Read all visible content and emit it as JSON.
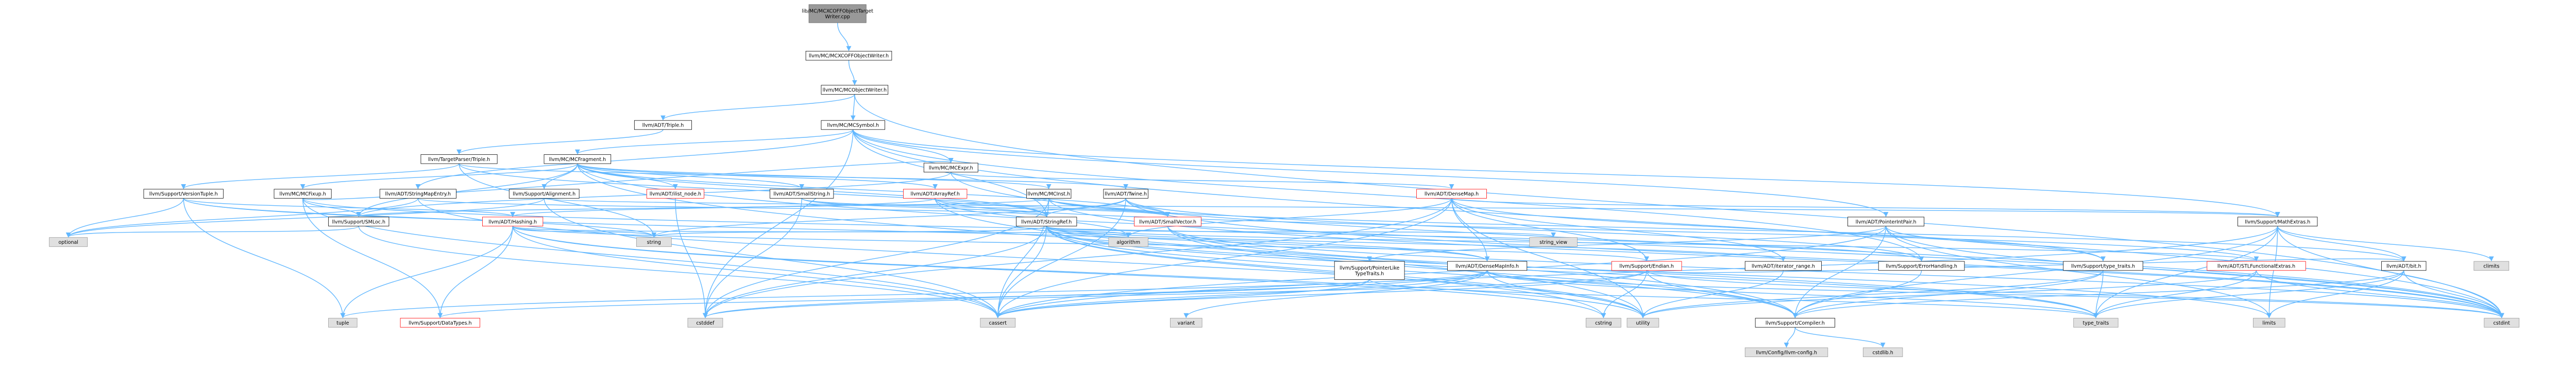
{
  "title": "lib/MC/MCXCOFFObjectTargetWriter.cpp",
  "colors": {
    "root_fill": "#999999",
    "root_border": "#666666",
    "node_fill": "#ffffff",
    "node_border": "#000000",
    "red_node_border": "#ff0000",
    "external_fill": "#e0e0e0",
    "external_border": "#999999",
    "edge": "#63b8ff"
  },
  "nodes": [
    {
      "id": "root",
      "kind": "root",
      "label": [
        "lib/MC/MCXCOFFObjectTarget",
        "Writer.cpp"
      ]
    },
    {
      "id": "mcxcoff",
      "kind": "normal",
      "label": [
        "llvm/MC/MCXCOFFObjectWriter.h"
      ]
    },
    {
      "id": "mcobj",
      "kind": "normal",
      "label": [
        "llvm/MC/MCObjectWriter.h"
      ]
    },
    {
      "id": "triple",
      "kind": "normal",
      "label": [
        "llvm/ADT/Triple.h"
      ]
    },
    {
      "id": "mcsymbol",
      "kind": "normal",
      "label": [
        "llvm/MC/MCSymbol.h"
      ]
    },
    {
      "id": "tptriple",
      "kind": "normal",
      "label": [
        "llvm/TargetParser/Triple.h"
      ]
    },
    {
      "id": "mcfragment",
      "kind": "normal",
      "label": [
        "llvm/MC/MCFragment.h"
      ]
    },
    {
      "id": "mcexpr",
      "kind": "normal",
      "label": [
        "llvm/MC/MCExpr.h"
      ]
    },
    {
      "id": "versiontuple",
      "kind": "normal",
      "label": [
        "llvm/Support/VersionTuple.h"
      ]
    },
    {
      "id": "mcfixup",
      "kind": "normal",
      "label": [
        "llvm/MC/MCFixup.h"
      ]
    },
    {
      "id": "stringmapentry",
      "kind": "normal",
      "label": [
        "llvm/ADT/StringMapEntry.h"
      ]
    },
    {
      "id": "alignment",
      "kind": "normal",
      "label": [
        "llvm/Support/Alignment.h"
      ]
    },
    {
      "id": "ilistnode",
      "kind": "red",
      "label": [
        "llvm/ADT/ilist_node.h"
      ]
    },
    {
      "id": "smallstring",
      "kind": "normal",
      "label": [
        "llvm/ADT/SmallString.h"
      ]
    },
    {
      "id": "arrayref",
      "kind": "red",
      "label": [
        "llvm/ADT/ArrayRef.h"
      ]
    },
    {
      "id": "mcinst",
      "kind": "normal",
      "label": [
        "llvm/MC/MCInst.h"
      ]
    },
    {
      "id": "twine",
      "kind": "normal",
      "label": [
        "llvm/ADT/Twine.h"
      ]
    },
    {
      "id": "densemap",
      "kind": "red",
      "label": [
        "llvm/ADT/DenseMap.h"
      ]
    },
    {
      "id": "smloc",
      "kind": "normal",
      "label": [
        "llvm/Support/SMLoc.h"
      ]
    },
    {
      "id": "hashing",
      "kind": "red",
      "label": [
        "llvm/ADT/Hashing.h"
      ]
    },
    {
      "id": "stringref",
      "kind": "normal",
      "label": [
        "llvm/ADT/StringRef.h"
      ]
    },
    {
      "id": "smallvector",
      "kind": "red",
      "label": [
        "llvm/ADT/SmallVector.h"
      ]
    },
    {
      "id": "pointerintpair",
      "kind": "normal",
      "label": [
        "llvm/ADT/PointerIntPair.h"
      ]
    },
    {
      "id": "mathextras",
      "kind": "normal",
      "label": [
        "llvm/Support/MathExtras.h"
      ]
    },
    {
      "id": "optional",
      "kind": "external",
      "label": [
        "optional"
      ]
    },
    {
      "id": "string",
      "kind": "external",
      "label": [
        "string"
      ]
    },
    {
      "id": "algorithm",
      "kind": "external",
      "label": [
        "algorithm"
      ]
    },
    {
      "id": "string_view",
      "kind": "external",
      "label": [
        "string_view"
      ]
    },
    {
      "id": "ptrliketypetraits",
      "kind": "normal",
      "label": [
        "llvm/Support/PointerLike",
        "TypeTraits.h"
      ]
    },
    {
      "id": "densemapinfo",
      "kind": "normal",
      "label": [
        "llvm/ADT/DenseMapInfo.h"
      ]
    },
    {
      "id": "ecradix",
      "kind": "red",
      "label": [
        "llvm/Support/Endian.h"
      ]
    },
    {
      "id": "iterator_range",
      "kind": "normal",
      "label": [
        "llvm/ADT/iterator_range.h"
      ]
    },
    {
      "id": "errorhandling",
      "kind": "normal",
      "label": [
        "llvm/Support/ErrorHandling.h"
      ]
    },
    {
      "id": "typetraits_h",
      "kind": "normal",
      "label": [
        "llvm/Support/type_traits.h"
      ]
    },
    {
      "id": "stlfunctional",
      "kind": "red",
      "label": [
        "llvm/ADT/STLFunctionalExtras.h"
      ]
    },
    {
      "id": "bit",
      "kind": "normal",
      "label": [
        "llvm/ADT/bit.h"
      ]
    },
    {
      "id": "climits",
      "kind": "external",
      "label": [
        "climits"
      ]
    },
    {
      "id": "tuple",
      "kind": "external",
      "label": [
        "tuple"
      ]
    },
    {
      "id": "datatypes",
      "kind": "red",
      "label": [
        "llvm/Support/DataTypes.h"
      ]
    },
    {
      "id": "cstddef",
      "kind": "external",
      "label": [
        "cstddef"
      ]
    },
    {
      "id": "cassert",
      "kind": "external",
      "label": [
        "cassert"
      ]
    },
    {
      "id": "variant",
      "kind": "external",
      "label": [
        "variant"
      ]
    },
    {
      "id": "cstring",
      "kind": "external",
      "label": [
        "cstring"
      ]
    },
    {
      "id": "utility",
      "kind": "external",
      "label": [
        "utility"
      ]
    },
    {
      "id": "compiler",
      "kind": "normal",
      "label": [
        "llvm/Support/Compiler.h"
      ]
    },
    {
      "id": "type_traits",
      "kind": "external",
      "label": [
        "type_traits"
      ]
    },
    {
      "id": "limits",
      "kind": "external",
      "label": [
        "limits"
      ]
    },
    {
      "id": "cstdint",
      "kind": "external",
      "label": [
        "cstdint"
      ]
    },
    {
      "id": "llvmconfig",
      "kind": "external",
      "label": [
        "llvm/Config/llvm-config.h"
      ]
    },
    {
      "id": "cstdlib",
      "kind": "external",
      "label": [
        "cstdlib.h"
      ]
    }
  ],
  "edges": [
    [
      "root",
      "mcxcoff"
    ],
    [
      "mcxcoff",
      "mcobj"
    ],
    [
      "mcobj",
      "triple"
    ],
    [
      "mcobj",
      "mcsymbol"
    ],
    [
      "mcobj",
      "cstdint"
    ],
    [
      "triple",
      "tptriple"
    ],
    [
      "mcsymbol",
      "stringmapentry"
    ],
    [
      "mcsymbol",
      "mcfragment"
    ],
    [
      "mcsymbol",
      "mcexpr"
    ],
    [
      "mcsymbol",
      "pointerintpair"
    ],
    [
      "mcsymbol",
      "stringref"
    ],
    [
      "mcsymbol",
      "errorhandling"
    ],
    [
      "mcsymbol",
      "mathextras"
    ],
    [
      "mcsymbol",
      "cstddef"
    ],
    [
      "mcsymbol",
      "cstdint"
    ],
    [
      "tptriple",
      "stringref"
    ],
    [
      "tptriple",
      "twine"
    ],
    [
      "tptriple",
      "versiontuple"
    ],
    [
      "tptriple",
      "string"
    ],
    [
      "mcfragment",
      "arrayref"
    ],
    [
      "mcfragment",
      "smallstring"
    ],
    [
      "mcfragment",
      "smallvector"
    ],
    [
      "mcfragment",
      "ilistnode"
    ],
    [
      "mcfragment",
      "mcfixup"
    ],
    [
      "mcfragment",
      "mcinst"
    ],
    [
      "mcfragment",
      "alignment"
    ],
    [
      "mcfragment",
      "smloc"
    ],
    [
      "mcfragment",
      "stringref"
    ],
    [
      "mcfragment",
      "cstdint"
    ],
    [
      "mcfragment",
      "utility"
    ],
    [
      "mcexpr",
      "densemap"
    ],
    [
      "mcexpr",
      "smloc"
    ],
    [
      "mcexpr",
      "cstdint"
    ],
    [
      "versiontuple",
      "densemapinfo"
    ],
    [
      "versiontuple",
      "hashing"
    ],
    [
      "versiontuple",
      "optional"
    ],
    [
      "versiontuple",
      "string"
    ],
    [
      "versiontuple",
      "tuple"
    ],
    [
      "mcfixup",
      "mcexpr"
    ],
    [
      "mcfixup",
      "smloc"
    ],
    [
      "mcfixup",
      "datatypes"
    ],
    [
      "mcfixup",
      "errorhandling"
    ],
    [
      "mcfixup",
      "cassert"
    ],
    [
      "stringmapentry",
      "stringref"
    ],
    [
      "stringmapentry",
      "optional"
    ],
    [
      "stringmapentry",
      "utility"
    ],
    [
      "alignment",
      "mathextras"
    ],
    [
      "alignment",
      "cassert"
    ],
    [
      "alignment",
      "optional"
    ],
    [
      "ilistnode",
      "cstddef"
    ],
    [
      "smallstring",
      "stringref"
    ],
    [
      "smallstring",
      "smallvector"
    ],
    [
      "smallstring",
      "cstddef"
    ],
    [
      "arrayref",
      "hashing"
    ],
    [
      "arrayref",
      "smallvector"
    ],
    [
      "arrayref",
      "stlfunctional"
    ],
    [
      "arrayref",
      "compiler"
    ],
    [
      "arrayref",
      "algorithm"
    ],
    [
      "mcinst",
      "smallvector"
    ],
    [
      "mcinst",
      "smloc"
    ],
    [
      "mcinst",
      "bit"
    ],
    [
      "mcinst",
      "cassert"
    ],
    [
      "mcinst",
      "cstddef"
    ],
    [
      "mcinst",
      "cstdint"
    ],
    [
      "twine",
      "smallvector"
    ],
    [
      "twine",
      "stringref"
    ],
    [
      "twine",
      "errorhandling"
    ],
    [
      "twine",
      "cassert"
    ],
    [
      "twine",
      "cstdint"
    ],
    [
      "twine",
      "string"
    ],
    [
      "densemap",
      "densemapinfo"
    ],
    [
      "densemap",
      "ecradix"
    ],
    [
      "densemap",
      "mathextras"
    ],
    [
      "densemap",
      "typetraits_h"
    ],
    [
      "densemap",
      "algorithm"
    ],
    [
      "densemap",
      "cassert"
    ],
    [
      "densemap",
      "cstddef"
    ],
    [
      "densemap",
      "utility"
    ],
    [
      "densemap",
      "iterator_range"
    ],
    [
      "smloc",
      "optional"
    ],
    [
      "smloc",
      "cassert"
    ],
    [
      "hashing",
      "ecradix"
    ],
    [
      "hashing",
      "datatypes"
    ],
    [
      "hashing",
      "algorithm"
    ],
    [
      "hashing",
      "cassert"
    ],
    [
      "hashing",
      "cstring"
    ],
    [
      "hashing",
      "string"
    ],
    [
      "hashing",
      "tuple"
    ],
    [
      "hashing",
      "utility"
    ],
    [
      "stringref",
      "densemapinfo"
    ],
    [
      "stringref",
      "stlfunctional"
    ],
    [
      "stringref",
      "iterator_range"
    ],
    [
      "stringref",
      "compiler"
    ],
    [
      "stringref",
      "algorithm"
    ],
    [
      "stringref",
      "cassert"
    ],
    [
      "stringref",
      "cstddef"
    ],
    [
      "stringref",
      "cstring"
    ],
    [
      "stringref",
      "limits"
    ],
    [
      "stringref",
      "string"
    ],
    [
      "stringref",
      "string_view"
    ],
    [
      "stringref",
      "type_traits"
    ],
    [
      "stringref",
      "utility"
    ],
    [
      "smallvector",
      "compiler"
    ],
    [
      "smallvector",
      "type_traits"
    ],
    [
      "smallvector",
      "cstdint"
    ],
    [
      "pointerintpair",
      "ptrliketypetraits"
    ],
    [
      "pointerintpair",
      "typetraits_h"
    ],
    [
      "pointerintpair",
      "compiler"
    ],
    [
      "pointerintpair",
      "cassert"
    ],
    [
      "pointerintpair",
      "cstdint"
    ],
    [
      "pointerintpair",
      "limits"
    ],
    [
      "mathextras",
      "bit"
    ],
    [
      "mathextras",
      "compiler"
    ],
    [
      "mathextras",
      "cassert"
    ],
    [
      "mathextras",
      "climits"
    ],
    [
      "mathextras",
      "cstdint"
    ],
    [
      "mathextras",
      "limits"
    ],
    [
      "mathextras",
      "type_traits"
    ],
    [
      "ptrliketypetraits",
      "datatypes"
    ],
    [
      "ptrliketypetraits",
      "cassert"
    ],
    [
      "ptrliketypetraits",
      "type_traits"
    ],
    [
      "densemapinfo",
      "cassert"
    ],
    [
      "densemapinfo",
      "cstddef"
    ],
    [
      "densemapinfo",
      "cstdint"
    ],
    [
      "densemapinfo",
      "tuple"
    ],
    [
      "densemapinfo",
      "type_traits"
    ],
    [
      "densemapinfo",
      "utility"
    ],
    [
      "densemapinfo",
      "variant"
    ],
    [
      "ecradix",
      "bit"
    ],
    [
      "ecradix",
      "compiler"
    ],
    [
      "ecradix",
      "cassert"
    ],
    [
      "ecradix",
      "cstddef"
    ],
    [
      "ecradix",
      "cstdint"
    ],
    [
      "ecradix",
      "cstring"
    ],
    [
      "iterator_range",
      "utility"
    ],
    [
      "errorhandling",
      "compiler"
    ],
    [
      "typetraits_h",
      "compiler"
    ],
    [
      "typetraits_h",
      "type_traits"
    ],
    [
      "typetraits_h",
      "utility"
    ],
    [
      "stlfunctional",
      "type_traits"
    ],
    [
      "stlfunctional",
      "utility"
    ],
    [
      "stlfunctional",
      "cstdint"
    ],
    [
      "bit",
      "compiler"
    ],
    [
      "bit",
      "cstdint"
    ],
    [
      "bit",
      "limits"
    ],
    [
      "bit",
      "type_traits"
    ],
    [
      "compiler",
      "llvmconfig"
    ],
    [
      "compiler",
      "cstdlib"
    ]
  ]
}
